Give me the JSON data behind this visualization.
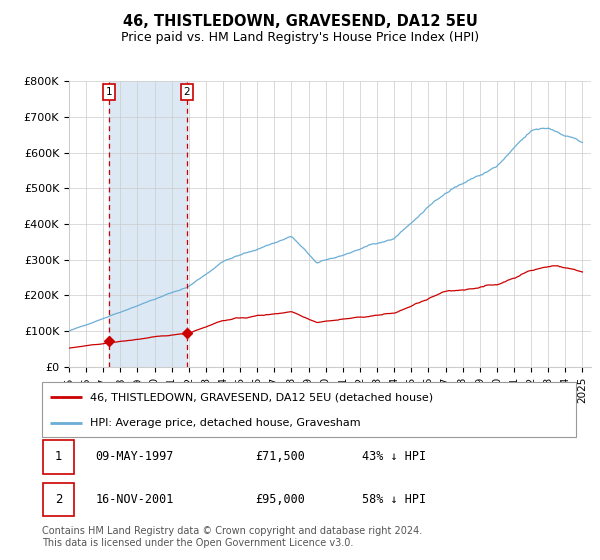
{
  "title": "46, THISTLEDOWN, GRAVESEND, DA12 5EU",
  "subtitle": "Price paid vs. HM Land Registry's House Price Index (HPI)",
  "ylim": [
    0,
    800000
  ],
  "yticks": [
    0,
    100000,
    200000,
    300000,
    400000,
    500000,
    600000,
    700000,
    800000
  ],
  "ytick_labels": [
    "£0",
    "£100K",
    "£200K",
    "£300K",
    "£400K",
    "£500K",
    "£600K",
    "£700K",
    "£800K"
  ],
  "sale1_date": 1997.36,
  "sale1_price": 71500,
  "sale2_date": 2001.88,
  "sale2_price": 95000,
  "hpi_color": "#6baed6",
  "price_color": "#cc0000",
  "shading_color": "#dce9f5",
  "dashed_line_color": "#cc0000",
  "background_color": "#ffffff",
  "grid_color": "#cccccc",
  "legend_line1": "46, THISTLEDOWN, GRAVESEND, DA12 5EU (detached house)",
  "legend_line2": "HPI: Average price, detached house, Gravesham",
  "table_row1": [
    "1",
    "09-MAY-1997",
    "£71,500",
    "43% ↓ HPI"
  ],
  "table_row2": [
    "2",
    "16-NOV-2001",
    "£95,000",
    "58% ↓ HPI"
  ],
  "footer": "Contains HM Land Registry data © Crown copyright and database right 2024.\nThis data is licensed under the Open Government Licence v3.0.",
  "xlim_start": 1995.0,
  "xlim_end": 2025.5
}
